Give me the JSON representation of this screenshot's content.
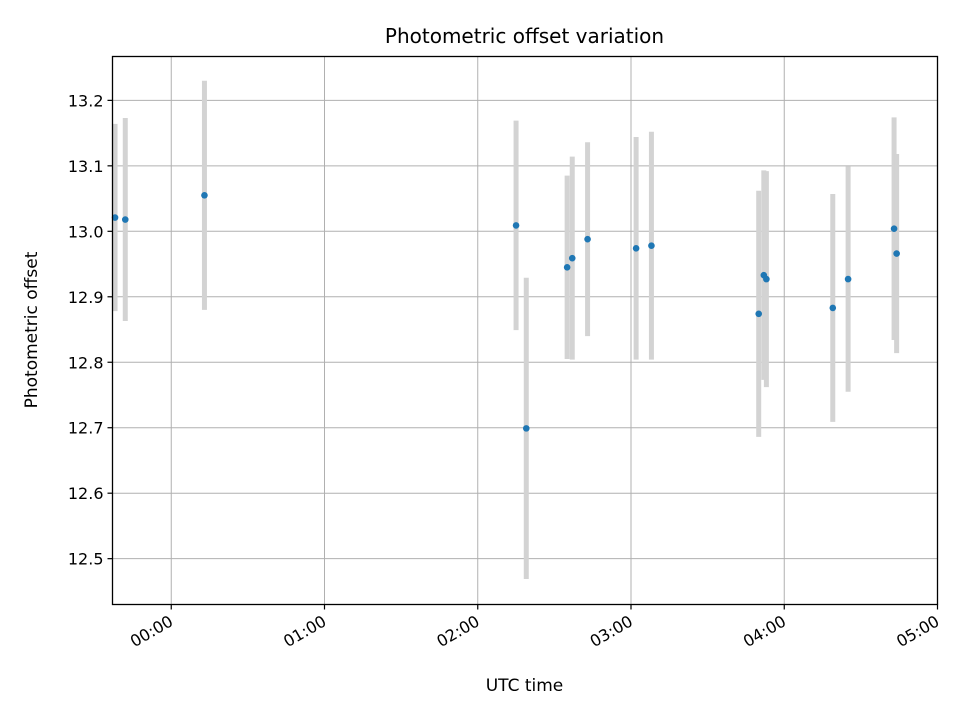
{
  "chart_data": {
    "type": "scatter",
    "title": "Photometric offset variation",
    "xlabel": "UTC time",
    "ylabel": "Photometric offset",
    "x_ticks": [
      "00:00",
      "01:00",
      "02:00",
      "03:00",
      "04:00",
      "05:00"
    ],
    "y_ticks": [
      "12.5",
      "12.6",
      "12.7",
      "12.8",
      "12.9",
      "13.0",
      "13.1",
      "13.2"
    ],
    "xlim": [
      "23:37",
      "05:00"
    ],
    "ylim": [
      12.43,
      13.267
    ],
    "grid": true,
    "errorbar_color": "#d3d3d3",
    "marker_color": "#1f77b4",
    "points": [
      {
        "time": "23:38",
        "y": 13.021,
        "err": 0.143
      },
      {
        "time": "23:42",
        "y": 13.018,
        "err": 0.155
      },
      {
        "time": "00:13",
        "y": 13.055,
        "err": 0.175
      },
      {
        "time": "02:15",
        "y": 13.009,
        "err": 0.16
      },
      {
        "time": "02:19",
        "y": 12.699,
        "err": 0.23
      },
      {
        "time": "02:35",
        "y": 12.945,
        "err": 0.14
      },
      {
        "time": "02:37",
        "y": 12.959,
        "err": 0.155
      },
      {
        "time": "02:43",
        "y": 12.988,
        "err": 0.148
      },
      {
        "time": "03:02",
        "y": 12.974,
        "err": 0.17
      },
      {
        "time": "03:08",
        "y": 12.978,
        "err": 0.174
      },
      {
        "time": "03:50",
        "y": 12.874,
        "err": 0.188
      },
      {
        "time": "03:52",
        "y": 12.933,
        "err": 0.16
      },
      {
        "time": "03:53",
        "y": 12.927,
        "err": 0.165
      },
      {
        "time": "04:19",
        "y": 12.883,
        "err": 0.174
      },
      {
        "time": "04:25",
        "y": 12.927,
        "err": 0.172
      },
      {
        "time": "04:43",
        "y": 13.004,
        "err": 0.17
      },
      {
        "time": "04:44",
        "y": 12.966,
        "err": 0.152
      }
    ]
  }
}
